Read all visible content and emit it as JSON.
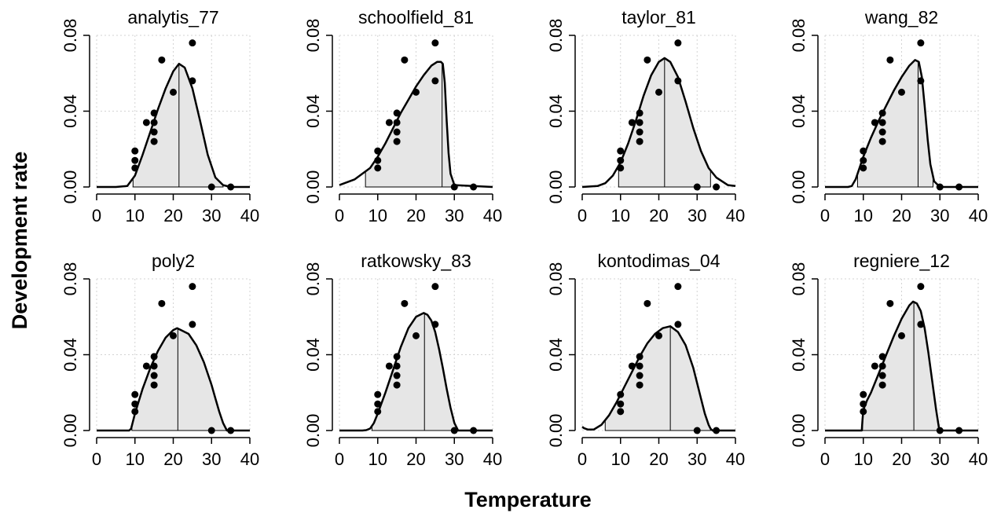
{
  "figure": {
    "xlabel": "Temperature",
    "ylabel": "Development rate"
  },
  "chart_data": [
    {
      "type": "line",
      "title": "analytis_77",
      "xlim": [
        0,
        40
      ],
      "ylim": [
        0,
        0.08
      ],
      "xticks": [
        0,
        10,
        20,
        30,
        40
      ],
      "yticks": [
        0.0,
        0.04,
        0.08
      ],
      "ytick_labels": [
        "0.00",
        "0.04",
        "0.08"
      ],
      "grid": true,
      "fill": "#e6e6e6",
      "curve": {
        "x": [
          0,
          5,
          8,
          10,
          12,
          14,
          16,
          18,
          20,
          21.5,
          23,
          25,
          27,
          29,
          31,
          33,
          35,
          40
        ],
        "y": [
          0,
          0,
          0.0005,
          0.006,
          0.017,
          0.029,
          0.041,
          0.052,
          0.061,
          0.065,
          0.063,
          0.052,
          0.035,
          0.017,
          0.005,
          0.001,
          0,
          0
        ]
      },
      "shade": [
        9.5,
        33
      ],
      "peak_line": 21.5,
      "points": {
        "x": [
          10,
          10,
          10,
          13,
          15,
          15,
          15,
          15,
          17,
          20,
          25,
          25,
          30,
          35
        ],
        "y": [
          0.01,
          0.014,
          0.019,
          0.034,
          0.024,
          0.029,
          0.034,
          0.039,
          0.067,
          0.05,
          0.076,
          0.056,
          0.0,
          0.0
        ]
      }
    },
    {
      "type": "line",
      "title": "schoolfield_81",
      "xlim": [
        0,
        40
      ],
      "ylim": [
        0,
        0.08
      ],
      "xticks": [
        0,
        10,
        20,
        30,
        40
      ],
      "yticks": [
        0.0,
        0.04,
        0.08
      ],
      "ytick_labels": [
        "0.00",
        "0.04",
        "0.08"
      ],
      "grid": true,
      "fill": "#e6e6e6",
      "curve": {
        "x": [
          0,
          4,
          8,
          10,
          12,
          14,
          16,
          18,
          20,
          22,
          24,
          25.5,
          26.5,
          27,
          27.5,
          28,
          28.5,
          29,
          30,
          40
        ],
        "y": [
          0.001,
          0.004,
          0.01,
          0.016,
          0.023,
          0.031,
          0.039,
          0.046,
          0.053,
          0.059,
          0.064,
          0.066,
          0.066,
          0.065,
          0.055,
          0.035,
          0.018,
          0.007,
          0.001,
          0
        ]
      },
      "shade": [
        6.8,
        30
      ],
      "peak_line": 26.8,
      "points": {
        "x": [
          10,
          10,
          10,
          13,
          15,
          15,
          15,
          15,
          17,
          20,
          25,
          25,
          30,
          35
        ],
        "y": [
          0.01,
          0.014,
          0.019,
          0.034,
          0.024,
          0.029,
          0.034,
          0.039,
          0.067,
          0.05,
          0.076,
          0.056,
          0.0,
          0.0
        ]
      }
    },
    {
      "type": "line",
      "title": "taylor_81",
      "xlim": [
        0,
        40
      ],
      "ylim": [
        0,
        0.08
      ],
      "xticks": [
        0,
        10,
        20,
        30,
        40
      ],
      "yticks": [
        0.0,
        0.04,
        0.08
      ],
      "ytick_labels": [
        "0.00",
        "0.04",
        "0.08"
      ],
      "grid": true,
      "fill": "#e6e6e6",
      "curve": {
        "x": [
          0,
          4,
          6,
          8,
          10,
          12,
          14,
          16,
          18,
          20,
          21.5,
          23,
          25,
          27,
          29,
          31,
          33,
          35,
          38,
          40
        ],
        "y": [
          0,
          0.0005,
          0.002,
          0.006,
          0.013,
          0.023,
          0.035,
          0.048,
          0.059,
          0.066,
          0.068,
          0.066,
          0.058,
          0.045,
          0.031,
          0.019,
          0.01,
          0.005,
          0.001,
          0.0005
        ]
      },
      "shade": [
        9.5,
        33.5
      ],
      "peak_line": 21.5,
      "points": {
        "x": [
          10,
          10,
          10,
          13,
          15,
          15,
          15,
          15,
          17,
          20,
          25,
          25,
          30,
          35
        ],
        "y": [
          0.01,
          0.014,
          0.019,
          0.034,
          0.024,
          0.029,
          0.034,
          0.039,
          0.067,
          0.05,
          0.076,
          0.056,
          0.0,
          0.0
        ]
      }
    },
    {
      "type": "line",
      "title": "wang_82",
      "xlim": [
        0,
        40
      ],
      "ylim": [
        0,
        0.08
      ],
      "xticks": [
        0,
        10,
        20,
        30,
        40
      ],
      "yticks": [
        0.0,
        0.04,
        0.08
      ],
      "ytick_labels": [
        "0.00",
        "0.04",
        "0.08"
      ],
      "grid": true,
      "fill": "#e6e6e6",
      "curve": {
        "x": [
          0,
          6,
          7,
          8,
          9,
          10,
          12,
          14,
          16,
          18,
          20,
          22,
          23.5,
          24.5,
          25.3,
          26,
          26.8,
          27.5,
          28.5,
          30,
          40
        ],
        "y": [
          0,
          0,
          0.0005,
          0.004,
          0.01,
          0.016,
          0.026,
          0.035,
          0.043,
          0.051,
          0.058,
          0.064,
          0.067,
          0.066,
          0.058,
          0.043,
          0.025,
          0.012,
          0.003,
          0,
          0
        ]
      },
      "shade": [
        8.5,
        28.2
      ],
      "peak_line": 24.3,
      "points": {
        "x": [
          10,
          10,
          10,
          13,
          15,
          15,
          15,
          15,
          17,
          20,
          25,
          25,
          30,
          35
        ],
        "y": [
          0.01,
          0.014,
          0.019,
          0.034,
          0.024,
          0.029,
          0.034,
          0.039,
          0.067,
          0.05,
          0.076,
          0.056,
          0.0,
          0.0
        ]
      }
    },
    {
      "type": "line",
      "title": "poly2",
      "xlim": [
        0,
        40
      ],
      "ylim": [
        0,
        0.08
      ],
      "xticks": [
        0,
        10,
        20,
        30,
        40
      ],
      "yticks": [
        0.0,
        0.04,
        0.08
      ],
      "ytick_labels": [
        "0.00",
        "0.04",
        "0.08"
      ],
      "grid": true,
      "fill": "#e6e6e6",
      "curve": {
        "x": [
          0,
          8.5,
          9,
          10,
          12,
          14,
          16,
          18,
          20,
          21,
          22,
          24,
          26,
          28,
          30,
          31,
          32,
          33,
          34,
          40
        ],
        "y": [
          0,
          0,
          0.001,
          0.009,
          0.022,
          0.033,
          0.042,
          0.049,
          0.053,
          0.054,
          0.053,
          0.051,
          0.045,
          0.036,
          0.024,
          0.017,
          0.01,
          0.004,
          0,
          0
        ]
      },
      "shade": [
        9.2,
        33.8
      ],
      "peak_line": 21.2,
      "points": {
        "x": [
          10,
          10,
          10,
          13,
          15,
          15,
          15,
          15,
          17,
          20,
          25,
          25,
          30,
          35
        ],
        "y": [
          0.01,
          0.014,
          0.019,
          0.034,
          0.024,
          0.029,
          0.034,
          0.039,
          0.067,
          0.05,
          0.076,
          0.056,
          0.0,
          0.0
        ]
      }
    },
    {
      "type": "line",
      "title": "ratkowsky_83",
      "xlim": [
        0,
        40
      ],
      "ylim": [
        0,
        0.08
      ],
      "xticks": [
        0,
        10,
        20,
        30,
        40
      ],
      "yticks": [
        0.0,
        0.04,
        0.08
      ],
      "ytick_labels": [
        "0.00",
        "0.04",
        "0.08"
      ],
      "grid": true,
      "fill": "#e6e6e6",
      "curve": {
        "x": [
          0,
          6,
          7,
          8,
          9,
          10,
          12,
          14,
          16,
          18,
          20,
          22,
          23,
          24,
          25,
          26,
          27,
          28,
          29,
          30,
          31,
          40
        ],
        "y": [
          0,
          0,
          0.0002,
          0.001,
          0.004,
          0.009,
          0.02,
          0.032,
          0.044,
          0.054,
          0.06,
          0.062,
          0.061,
          0.058,
          0.052,
          0.043,
          0.033,
          0.022,
          0.012,
          0.004,
          0,
          0
        ]
      },
      "shade": [
        8.5,
        30.5
      ],
      "peak_line": 22.2,
      "points": {
        "x": [
          10,
          10,
          10,
          13,
          15,
          15,
          15,
          15,
          17,
          20,
          25,
          25,
          30,
          35
        ],
        "y": [
          0.01,
          0.014,
          0.019,
          0.034,
          0.024,
          0.029,
          0.034,
          0.039,
          0.067,
          0.05,
          0.076,
          0.056,
          0.0,
          0.0
        ]
      }
    },
    {
      "type": "line",
      "title": "kontodimas_04",
      "xlim": [
        0,
        40
      ],
      "ylim": [
        0,
        0.08
      ],
      "xticks": [
        0,
        10,
        20,
        30,
        40
      ],
      "yticks": [
        0.0,
        0.04,
        0.08
      ],
      "ytick_labels": [
        "0.00",
        "0.04",
        "0.08"
      ],
      "grid": true,
      "fill": "#e6e6e6",
      "curve": {
        "x": [
          0,
          0.5,
          1.5,
          3,
          5,
          7,
          9,
          11,
          13,
          15,
          17,
          19,
          21,
          23,
          25,
          27,
          29,
          31,
          32,
          33,
          33.5,
          34,
          40
        ],
        "y": [
          0.002,
          0.0012,
          0.0005,
          0.0005,
          0.003,
          0.008,
          0.015,
          0.023,
          0.031,
          0.039,
          0.046,
          0.051,
          0.054,
          0.055,
          0.052,
          0.045,
          0.033,
          0.017,
          0.009,
          0.003,
          0.001,
          0,
          0
        ]
      },
      "shade": [
        6.0,
        33.5
      ],
      "peak_line": 23.0,
      "points": {
        "x": [
          10,
          10,
          10,
          13,
          15,
          15,
          15,
          15,
          17,
          20,
          25,
          25,
          30,
          35
        ],
        "y": [
          0.01,
          0.014,
          0.019,
          0.034,
          0.024,
          0.029,
          0.034,
          0.039,
          0.067,
          0.05,
          0.076,
          0.056,
          0.0,
          0.0
        ]
      }
    },
    {
      "type": "line",
      "title": "regniere_12",
      "xlim": [
        0,
        40
      ],
      "ylim": [
        0,
        0.08
      ],
      "xticks": [
        0,
        10,
        20,
        30,
        40
      ],
      "yticks": [
        0.0,
        0.04,
        0.08
      ],
      "ytick_labels": [
        "0.00",
        "0.04",
        "0.08"
      ],
      "grid": true,
      "fill": "#e6e6e6",
      "curve": {
        "x": [
          0,
          9.6,
          9.8,
          10,
          11,
          12,
          14,
          16,
          18,
          20,
          22,
          23,
          24,
          25,
          26,
          27,
          28,
          29,
          29.7,
          30,
          40
        ],
        "y": [
          0,
          0,
          0.006,
          0.011,
          0.016,
          0.02,
          0.03,
          0.04,
          0.05,
          0.059,
          0.066,
          0.068,
          0.067,
          0.063,
          0.054,
          0.041,
          0.026,
          0.011,
          0.002,
          0,
          0
        ]
      },
      "shade": [
        9.8,
        29.8
      ],
      "peak_line": 23.2,
      "points": {
        "x": [
          10,
          10,
          10,
          13,
          15,
          15,
          15,
          15,
          17,
          20,
          25,
          25,
          30,
          35
        ],
        "y": [
          0.01,
          0.014,
          0.019,
          0.034,
          0.024,
          0.029,
          0.034,
          0.039,
          0.067,
          0.05,
          0.076,
          0.056,
          0.0,
          0.0
        ]
      }
    }
  ]
}
